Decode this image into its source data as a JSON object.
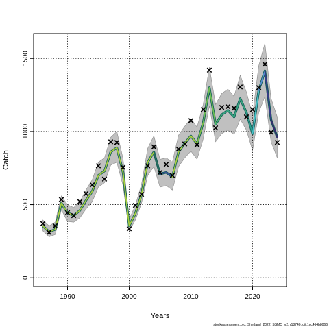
{
  "chart_data": {
    "type": "line",
    "xlabel": "Years",
    "ylabel": "Catch",
    "xlim": [
      1984.5,
      2025.5
    ],
    "ylim": [
      -60,
      1670
    ],
    "x_ticks": [
      1990,
      2000,
      2010,
      2020
    ],
    "y_ticks": [
      0,
      500,
      1000,
      1500
    ],
    "grid": true,
    "observed": {
      "marker": "x",
      "x": [
        1986,
        1987,
        1988,
        1989,
        1990,
        1991,
        1992,
        1993,
        1994,
        1995,
        1996,
        1997,
        1998,
        1999,
        2000,
        2001,
        2002,
        2003,
        2004,
        2005,
        2006,
        2007,
        2008,
        2009,
        2010,
        2011,
        2012,
        2013,
        2014,
        2015,
        2016,
        2017,
        2018,
        2019,
        2020,
        2021,
        2022,
        2023,
        2024
      ],
      "y": [
        370,
        310,
        355,
        535,
        445,
        425,
        520,
        575,
        635,
        765,
        675,
        930,
        925,
        755,
        335,
        495,
        570,
        765,
        895,
        720,
        775,
        700,
        880,
        915,
        1075,
        910,
        1150,
        1420,
        1025,
        1165,
        1170,
        1160,
        1305,
        1100,
        1150,
        1300,
        1460,
        995,
        925
      ]
    },
    "fitted": {
      "x": [
        1986,
        1987,
        1988,
        1989,
        1990,
        1991,
        1992,
        1993,
        1994,
        1995,
        1996,
        1997,
        1998,
        1999,
        2000,
        2001,
        2002,
        2003,
        2004,
        2005,
        2006,
        2007,
        2008,
        2009,
        2010,
        2011,
        2012,
        2013,
        2014,
        2015,
        2016,
        2017,
        2018,
        2019,
        2020,
        2021,
        2022,
        2023,
        2024
      ],
      "y": [
        355,
        315,
        330,
        510,
        445,
        425,
        460,
        530,
        590,
        700,
        730,
        860,
        890,
        720,
        355,
        440,
        570,
        790,
        860,
        710,
        720,
        690,
        860,
        920,
        970,
        915,
        1060,
        1300,
        1050,
        1115,
        1145,
        1100,
        1225,
        1130,
        985,
        1280,
        1415,
        1080,
        960
      ],
      "lower": [
        320,
        280,
        295,
        465,
        385,
        380,
        410,
        470,
        520,
        620,
        650,
        770,
        790,
        630,
        320,
        395,
        510,
        700,
        760,
        620,
        630,
        600,
        760,
        820,
        865,
        810,
        950,
        1175,
        930,
        985,
        1010,
        980,
        1085,
        1010,
        870,
        1130,
        1240,
        930,
        820
      ],
      "upper": [
        395,
        355,
        380,
        560,
        500,
        480,
        520,
        600,
        670,
        790,
        820,
        960,
        1000,
        815,
        400,
        495,
        640,
        885,
        970,
        810,
        820,
        790,
        975,
        1035,
        1090,
        1030,
        1185,
        1440,
        1185,
        1260,
        1290,
        1240,
        1385,
        1270,
        1115,
        1450,
        1605,
        1225,
        1100
      ],
      "segment_colors": [
        "#a9ce40",
        "#a9ce40",
        "#a9ce40",
        "#a9ce40",
        "#a9ce40",
        "#a9ce40",
        "#a9ce40",
        "#a9ce40",
        "#a9ce40",
        "#a9ce40",
        "#a9ce40",
        "#a9ce40",
        "#a9ce40",
        "#a9ce40",
        "#a9ce40",
        "#a9ce40",
        "#a9ce40",
        "#a9ce40",
        "#2a6d5e",
        "#3b4f9a",
        "#3b4f9a",
        "#a9ce40",
        "#a9ce40",
        "#a9ce40",
        "#a9ce40",
        "#7fbf4a",
        "#6fbf55",
        "#6fbf55",
        "#4bb070",
        "#3aa580",
        "#3aa580",
        "#3aa580",
        "#3aa580",
        "#2fa08e",
        "#49c0c8",
        "#5a8fd0",
        "#3a3a8a",
        "#3a2a70"
      ],
      "outline_color": "#0c5a55",
      "band_color": "#c0c0c0"
    }
  },
  "footer_text": "stockassessment.org, Shetland_2022_SSMO_v2, r18740, git:1cc464b8066"
}
